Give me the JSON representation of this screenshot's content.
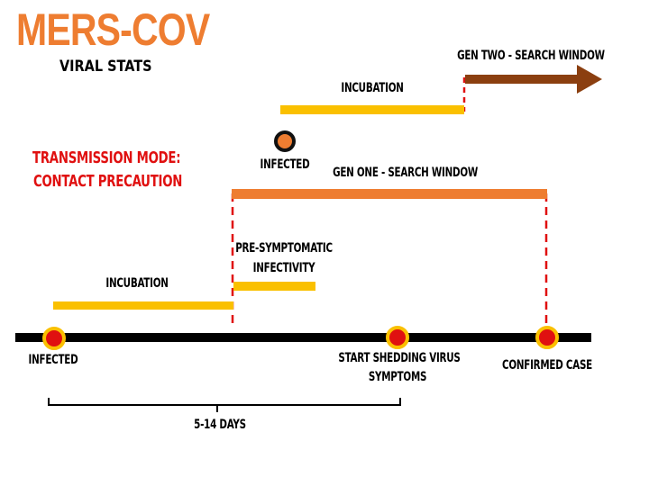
{
  "header": {
    "title": "MERS-COV",
    "subtitle": "VIRAL STATS"
  },
  "transmission": {
    "line1": "TRANSMISSION  MODE:",
    "line2": "CONTACT PRECAUTION"
  },
  "labels": {
    "gen_two_window": "GEN TWO - SEARCH WINDOW",
    "incubation_upper": "INCUBATION",
    "infected_upper": "INFECTED",
    "gen_one_window": "GEN ONE - SEARCH WINDOW",
    "presymptomatic_line1": "PRE-SYMPTOMATIC",
    "presymptomatic_line2": "INFECTIVITY",
    "incubation_lower": "INCUBATION",
    "infected_lower": "INFECTED",
    "shedding_line1": "START SHEDDING VIRUS",
    "shedding_line2": "SYMPTOMS",
    "confirmed_case": "CONFIRMED CASE",
    "duration": "5-14 DAYS"
  },
  "colors": {
    "orange": "#ee7d31",
    "yellow": "#fac000",
    "red": "#e01010",
    "brown": "#8b3f10",
    "black": "#000000"
  }
}
